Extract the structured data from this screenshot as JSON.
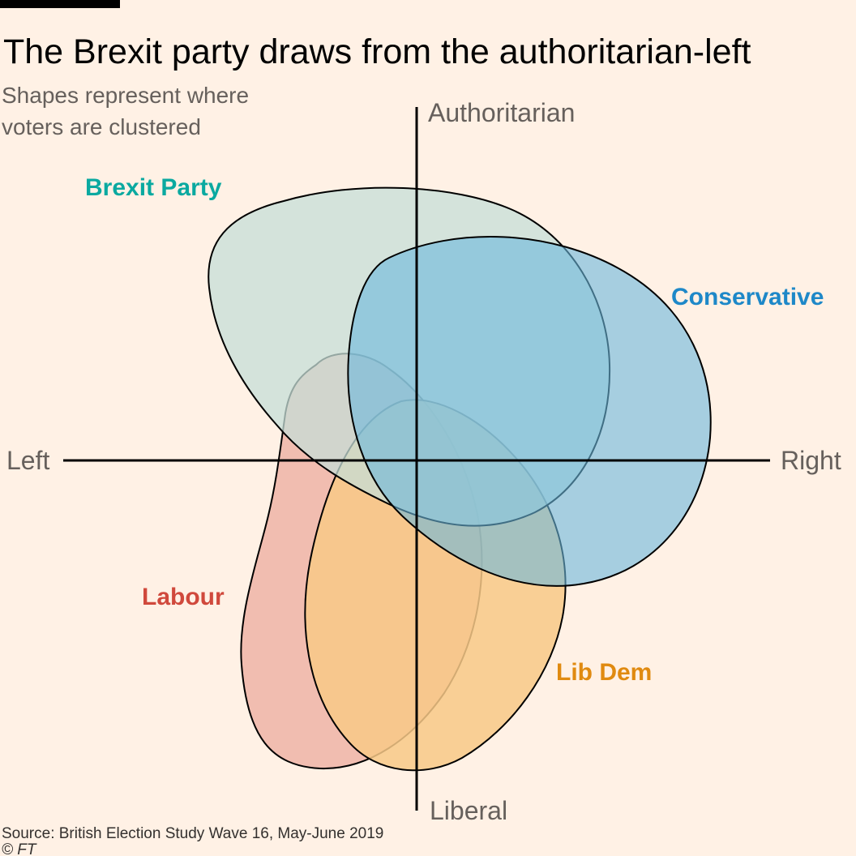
{
  "title": "The Brexit party draws from the authoritarian-left",
  "subtitle_lines": [
    "Shapes represent where",
    "voters are clustered"
  ],
  "axes": {
    "top": "Authoritarian",
    "bottom": "Liberal",
    "left": "Left",
    "right": "Right"
  },
  "source": "Source: British Election Study Wave 16, May-June 2019",
  "copyright": "© FT",
  "colors": {
    "background": "#fff1e5",
    "top_bar": "#000000",
    "axis": "#000000"
  },
  "chart_data": {
    "type": "scatter",
    "description_axes": {
      "x": "economic left-right",
      "y": "liberal-authoritarian",
      "xlim": [
        -1,
        1
      ],
      "ylim": [
        -1,
        1
      ]
    },
    "series": [
      {
        "name": "Labour",
        "color": "#e0584a",
        "fill": "#eeb0a2",
        "opacity": 0.8,
        "center": [
          -0.31,
          -0.28
        ]
      },
      {
        "name": "Lib Dem",
        "color": "#e08a10",
        "fill": "#f8c987",
        "opacity": 0.85,
        "center": [
          -0.06,
          -0.41
        ]
      },
      {
        "name": "Brexit Party",
        "color": "#0aa9a0",
        "fill": "#c5ddd7",
        "opacity": 0.75,
        "center": [
          -0.09,
          0.39
        ]
      },
      {
        "name": "Conservative",
        "color": "#1e88c8",
        "fill": "#6ab8dc",
        "opacity": 0.6,
        "center": [
          0.28,
          0.21
        ]
      }
    ]
  }
}
